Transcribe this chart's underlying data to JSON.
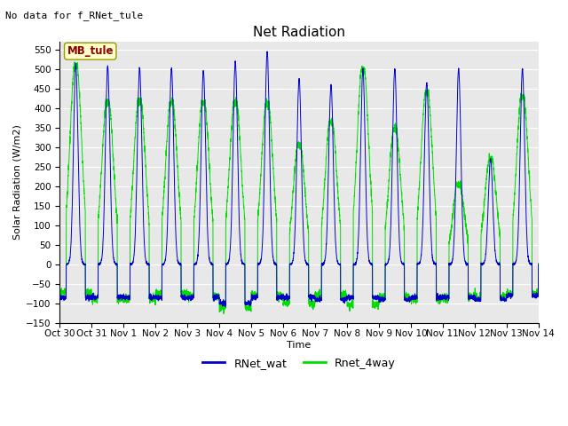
{
  "title": "Net Radiation",
  "xlabel": "Time",
  "ylabel": "Solar Radiation (W/m2)",
  "top_left_text": "No data for f_RNet_tule",
  "annotation_box": "MB_tule",
  "ylim": [
    -150,
    570
  ],
  "yticks": [
    -150,
    -100,
    -50,
    0,
    50,
    100,
    150,
    200,
    250,
    300,
    350,
    400,
    450,
    500,
    550
  ],
  "xtick_labels": [
    "Oct 30",
    "Oct 31",
    "Nov 1",
    "Nov 2",
    "Nov 3",
    "Nov 4",
    "Nov 5",
    "Nov 6",
    "Nov 7",
    "Nov 8",
    "Nov 9",
    "Nov 10",
    "Nov 11",
    "Nov 12",
    "Nov 13",
    "Nov 14"
  ],
  "legend_entries": [
    "RNet_wat",
    "Rnet_4way"
  ],
  "line_colors": [
    "#0000cc",
    "#00dd00"
  ],
  "background_color": "#e8e8e8",
  "title_fontsize": 11,
  "label_fontsize": 8,
  "tick_fontsize": 7.5,
  "blue_peaks": [
    515,
    508,
    503,
    503,
    495,
    520,
    545,
    475,
    460,
    500,
    500,
    465,
    500,
    270,
    500
  ],
  "green_peaks": [
    510,
    415,
    420,
    415,
    415,
    415,
    410,
    305,
    365,
    500,
    345,
    440,
    205,
    270,
    430
  ],
  "blue_night": [
    -85,
    -85,
    -85,
    -85,
    -85,
    -100,
    -85,
    -85,
    -90,
    -85,
    -90,
    -85,
    -85,
    -90,
    -80
  ],
  "green_night": [
    -75,
    -88,
    -88,
    -75,
    -80,
    -110,
    -80,
    -100,
    -80,
    -105,
    -85,
    -88,
    -85,
    -85,
    -75
  ]
}
